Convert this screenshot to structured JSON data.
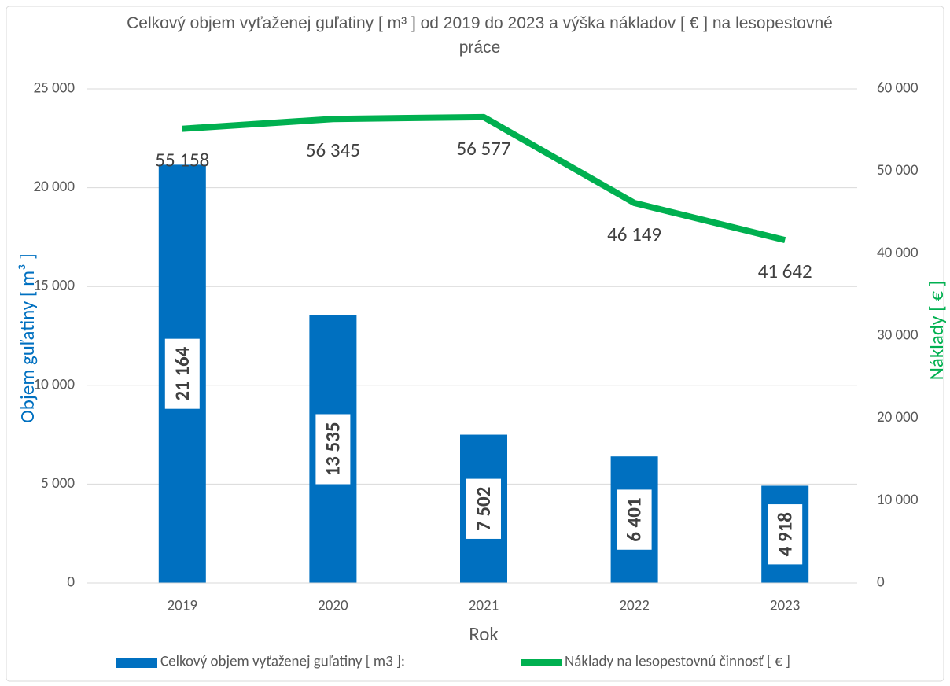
{
  "chart_data": {
    "type": "bar",
    "title": "Celkový objem vyťaženej guľatiny  [ m³ ] od 2019 do 2023 a výška nákladov [ € ] na lesopestovné práce",
    "xlabel": "Rok",
    "ylabel": "Objem guľatiny [ m³ ]",
    "y2label": "Náklady [ € ]",
    "categories": [
      "2019",
      "2020",
      "2021",
      "2022",
      "2023"
    ],
    "series": [
      {
        "name": "Celkový objem vyťaženej guľatiny [ m3 ]:",
        "type": "bar",
        "color": "#0070c0",
        "values": [
          21164,
          13535,
          7502,
          6401,
          4918
        ],
        "value_labels": [
          "21 164",
          "13 535",
          "7 502",
          "6 401",
          "4 918"
        ]
      },
      {
        "name": "Náklady na lesopestovnú činnosť [ € ]",
        "type": "line",
        "axis": "y2",
        "color": "#00b050",
        "values": [
          55158,
          56345,
          56577,
          46149,
          41642
        ],
        "value_labels": [
          "55 158",
          "56 345",
          "56 577",
          "46 149",
          "41 642"
        ]
      }
    ],
    "ylim": [
      0,
      25000
    ],
    "yticks": [
      0,
      {
        "value": 5000,
        "label": "5 000"
      },
      {
        "value": 10000,
        "label": "10 000"
      },
      {
        "value": 15000,
        "label": "15 000"
      },
      {
        "value": 20000,
        "label": "20 000"
      },
      {
        "value": 25000,
        "label": "25 000"
      }
    ],
    "y2lim": [
      0,
      60000
    ],
    "y2ticks": [
      0,
      {
        "value": 10000,
        "label": "10 000"
      },
      {
        "value": 20000,
        "label": "20 000"
      },
      {
        "value": 30000,
        "label": "30 000"
      },
      {
        "value": 40000,
        "label": "40 000"
      },
      {
        "value": 50000,
        "label": "50 000"
      },
      {
        "value": 60000,
        "label": "60 000"
      }
    ],
    "grid": true,
    "legend": "bottom"
  }
}
